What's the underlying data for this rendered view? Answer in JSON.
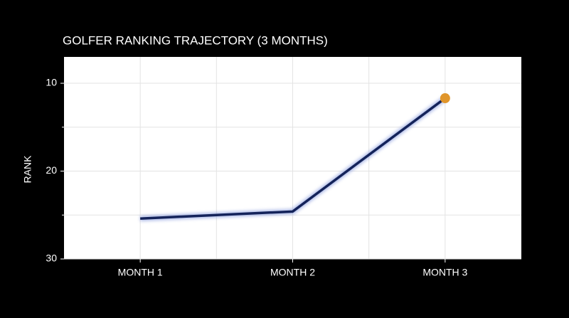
{
  "chart_data": {
    "type": "line",
    "title": "GOLFER RANKING TRAJECTORY (3 MONTHS)",
    "y_label": "RANK",
    "categories": [
      "MONTH 1",
      "MONTH 2",
      "MONTH 3"
    ],
    "series": [
      {
        "name": "Rank",
        "color": "#14235a",
        "values": [
          25.4,
          24.6,
          11.7
        ]
      }
    ],
    "highlight_color": "#e0952a",
    "ylim": [
      30,
      7
    ],
    "yticks": [
      10,
      20,
      30
    ],
    "y_minor_ticks": [
      15,
      25
    ],
    "inverted": true,
    "grid": true
  }
}
